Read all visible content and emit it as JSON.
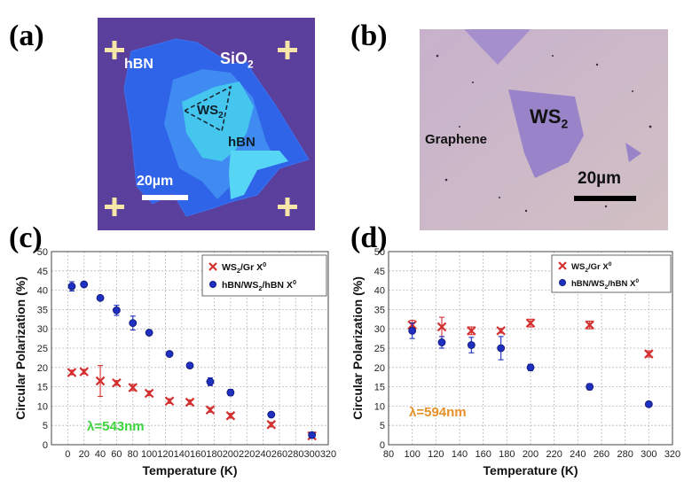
{
  "panels": {
    "a": "(a)",
    "b": "(b)",
    "c": "(c)",
    "d": "(d)"
  },
  "micrograph_a": {
    "label_sio2": "SiO",
    "label_sio2_sub": "2",
    "label_hbn_top": "hBN",
    "label_hbn_right": "hBN",
    "label_ws2": "WS",
    "label_ws2_sub": "2",
    "scale_label": "20µm",
    "colors": {
      "substrate": "#5b3f9c",
      "hbn": "#2f63e8",
      "ws2": "#45c6ee",
      "cross": "#f6e6a8"
    }
  },
  "micrograph_b": {
    "label_ws2": "WS",
    "label_ws2_sub": "2",
    "label_graphene": "Graphene",
    "scale_label": "20µm",
    "colors": {
      "substrate": "#cbb3c9",
      "ws2": "#9a84c9"
    }
  },
  "chart_data": [
    {
      "type": "scatter",
      "xlabel": "Temperature (K)",
      "ylabel": "Circular Polarization (%)",
      "xlim": [
        -20,
        320
      ],
      "ylim": [
        0,
        50
      ],
      "xticks": [
        0,
        40,
        80,
        120,
        160,
        200,
        240,
        280,
        320
      ],
      "xtick_labels": [
        "0",
        "20",
        "40",
        "60",
        "80",
        "100",
        "120",
        "140",
        "160",
        "180",
        "200",
        "220",
        "240",
        "260",
        "280",
        "300",
        "320"
      ],
      "xtick_values": [
        0,
        20,
        40,
        60,
        80,
        100,
        120,
        140,
        160,
        180,
        200,
        220,
        240,
        260,
        280,
        300,
        320
      ],
      "yticks": [
        0,
        5,
        10,
        15,
        20,
        25,
        30,
        35,
        40,
        45,
        50
      ],
      "grid": true,
      "legend_position": "top-right",
      "annotation": "λ=543nm",
      "annotation_color": "#3dd43d",
      "series": [
        {
          "name_main": "WS",
          "name_sub": "2",
          "name_rest": "/Gr X",
          "name_sup": "0",
          "marker": "x",
          "color": "#d43030",
          "x": [
            5,
            20,
            40,
            60,
            80,
            100,
            125,
            150,
            175,
            200,
            250,
            300
          ],
          "y": [
            18.7,
            18.9,
            16.5,
            16.0,
            14.8,
            13.3,
            11.3,
            11.0,
            9.0,
            7.5,
            5.2,
            2.3
          ],
          "err": [
            0.6,
            0.6,
            4.0,
            0.6,
            0.8,
            0.6,
            0.6,
            0.6,
            0.6,
            0.6,
            0.6,
            0.6
          ]
        },
        {
          "name_main": "hBN/WS",
          "name_sub": "2",
          "name_rest": "/hBN X",
          "name_sup": "0",
          "marker": "o",
          "color": "#1f2fc0",
          "x": [
            5,
            20,
            40,
            60,
            80,
            100,
            125,
            150,
            175,
            200,
            250,
            300
          ],
          "y": [
            41.0,
            41.5,
            38.0,
            34.8,
            31.5,
            29.0,
            23.5,
            20.5,
            16.3,
            13.5,
            7.8,
            2.5
          ],
          "err": [
            1.2,
            0.6,
            0.6,
            1.3,
            1.8,
            0.6,
            0.6,
            0.6,
            1.0,
            0.8,
            0.6,
            0.6
          ]
        }
      ]
    },
    {
      "type": "scatter",
      "xlabel": "Temperature (K)",
      "ylabel": "Circular Polarization (%)",
      "xlim": [
        80,
        320
      ],
      "ylim": [
        0,
        50
      ],
      "xtick_values": [
        80,
        100,
        120,
        140,
        160,
        180,
        200,
        220,
        240,
        260,
        280,
        300,
        320
      ],
      "xtick_labels": [
        "80",
        "100",
        "120",
        "140",
        "160",
        "180",
        "200",
        "220",
        "240",
        "260",
        "280",
        "300",
        "320"
      ],
      "yticks": [
        0,
        5,
        10,
        15,
        20,
        25,
        30,
        35,
        40,
        45,
        50
      ],
      "grid": true,
      "legend_position": "top-right",
      "annotation": "λ=594nm",
      "annotation_color": "#e8902a",
      "series": [
        {
          "name_main": "WS",
          "name_sub": "2",
          "name_rest": "/Gr X",
          "name_sup": "0",
          "marker": "x",
          "color": "#d43030",
          "x": [
            100,
            125,
            150,
            175,
            200,
            250,
            300
          ],
          "y": [
            31.0,
            30.5,
            29.5,
            29.5,
            31.5,
            31.0,
            23.5
          ],
          "err": [
            1.2,
            2.5,
            1.0,
            0.6,
            1.0,
            1.0,
            0.8
          ]
        },
        {
          "name_main": "hBN/WS",
          "name_sub": "2",
          "name_rest": "/hBN X",
          "name_sup": "0",
          "marker": "o",
          "color": "#1f2fc0",
          "x": [
            100,
            125,
            150,
            175,
            200,
            250,
            300
          ],
          "y": [
            29.5,
            26.5,
            25.8,
            25.0,
            20.0,
            15.0,
            10.5
          ],
          "err": [
            2.0,
            1.5,
            2.0,
            3.0,
            0.8,
            0.8,
            0.5
          ]
        }
      ]
    }
  ]
}
